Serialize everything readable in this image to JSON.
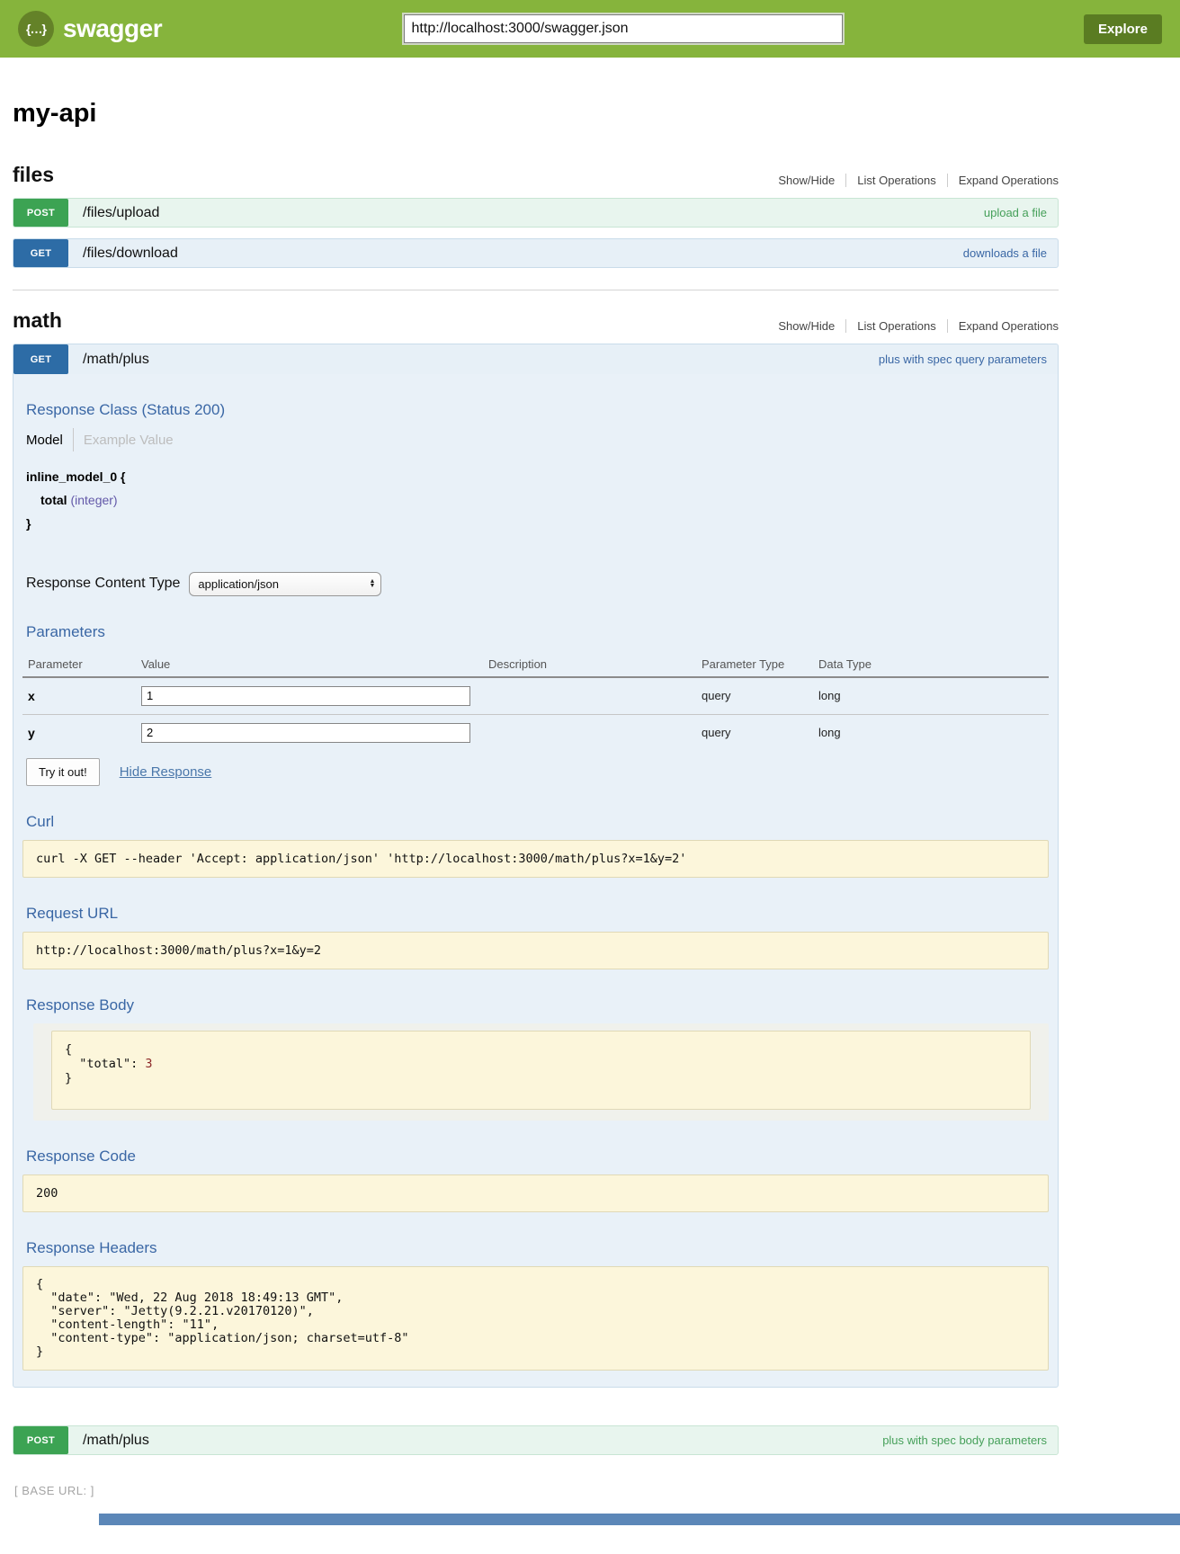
{
  "header": {
    "logo_glyph": "{…}",
    "logo_text": "swagger",
    "url_value": "http://localhost:3000/swagger.json",
    "explore_label": "Explore"
  },
  "page": {
    "title": "my-api",
    "base_url_label": "[ BASE URL: ]"
  },
  "controls": {
    "show_hide": "Show/Hide",
    "list_operations": "List Operations",
    "expand_operations": "Expand Operations"
  },
  "sections": {
    "files": {
      "title": "files",
      "ops": [
        {
          "method": "POST",
          "path": "/files/upload",
          "summary": "upload a file"
        },
        {
          "method": "GET",
          "path": "/files/download",
          "summary": "downloads a file"
        }
      ]
    },
    "math": {
      "title": "math",
      "get_op": {
        "method": "GET",
        "path": "/math/plus",
        "summary": "plus with spec query parameters"
      },
      "post_op": {
        "method": "POST",
        "path": "/math/plus",
        "summary": "plus with spec body parameters"
      }
    }
  },
  "operation_detail": {
    "response_class_heading": "Response Class (Status 200)",
    "tabs": {
      "model": "Model",
      "example": "Example Value"
    },
    "model": {
      "open": "inline_model_0 {",
      "prop_name": "total",
      "prop_type": "(integer)",
      "close": "}"
    },
    "response_content_type_label": "Response Content Type",
    "response_content_type_value": "application/json",
    "parameters_heading": "Parameters",
    "table": {
      "headers": [
        "Parameter",
        "Value",
        "Description",
        "Parameter Type",
        "Data Type"
      ],
      "rows": [
        {
          "name": "x",
          "value": "1",
          "description": "",
          "parameter_type": "query",
          "data_type": "long"
        },
        {
          "name": "y",
          "value": "2",
          "description": "",
          "parameter_type": "query",
          "data_type": "long"
        }
      ]
    },
    "try_it_out_label": "Try it out!",
    "hide_response_label": "Hide Response",
    "curl_heading": "Curl",
    "curl_command": "curl -X GET --header 'Accept: application/json' 'http://localhost:3000/math/plus?x=1&y=2'",
    "request_url_heading": "Request URL",
    "request_url": "http://localhost:3000/math/plus?x=1&y=2",
    "response_body_heading": "Response Body",
    "response_body": {
      "prefix": "{\n  \"total\": ",
      "value": "3",
      "suffix": "\n}"
    },
    "response_code_heading": "Response Code",
    "response_code": "200",
    "response_headers_heading": "Response Headers",
    "response_headers_json": "{\n  \"date\": \"Wed, 22 Aug 2018 18:49:13 GMT\",\n  \"server\": \"Jetty(9.2.21.v20170120)\",\n  \"content-length\": \"11\",\n  \"content-type\": \"application/json; charset=utf-8\"\n}"
  },
  "colors": {
    "header_green": "#86b43c",
    "post_green": "#3ca353",
    "get_blue": "#2d6ca6",
    "heading_blue": "#3a67a5",
    "code_block_bg": "#fcf6db"
  }
}
